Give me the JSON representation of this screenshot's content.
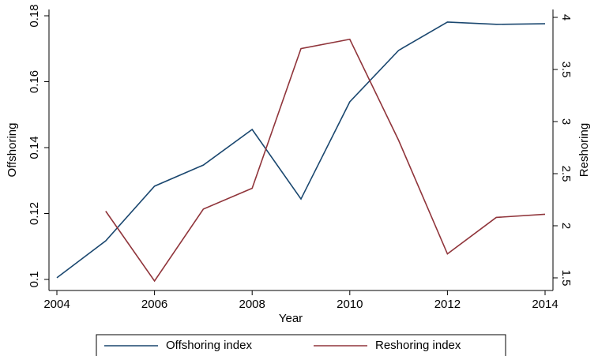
{
  "chart_data": {
    "type": "line",
    "x_label": "Year",
    "y_label": "Offshoring",
    "y2_label": "Reshoring",
    "x": [
      2004,
      2005,
      2006,
      2007,
      2008,
      2009,
      2010,
      2011,
      2012,
      2013,
      2014
    ],
    "series": [
      {
        "name": "Offshoring index",
        "color": "#1a476f",
        "values": [
          0.1005,
          0.1117,
          0.1283,
          0.1347,
          0.1455,
          0.1244,
          0.1539,
          0.1695,
          0.1781,
          0.1774,
          0.1776
        ]
      },
      {
        "name": "Reshoring index",
        "color": "#90353b",
        "axis": "y2",
        "values": [
          null,
          2.14,
          1.47,
          2.16,
          2.36,
          3.7,
          3.79,
          2.82,
          1.73,
          2.08,
          2.11
        ]
      }
    ],
    "xlim": [
      2004,
      2014
    ],
    "xticks": [
      2004,
      2006,
      2008,
      2010,
      2012,
      2014
    ],
    "ylim": [
      0.1,
      0.18
    ],
    "yticks": [
      0.1,
      0.12,
      0.14,
      0.16,
      0.18
    ],
    "y2lim": [
      1.5,
      4
    ],
    "y2ticks": [
      1.5,
      2,
      2.5,
      3,
      3.5,
      4
    ],
    "legend": "bottom"
  }
}
